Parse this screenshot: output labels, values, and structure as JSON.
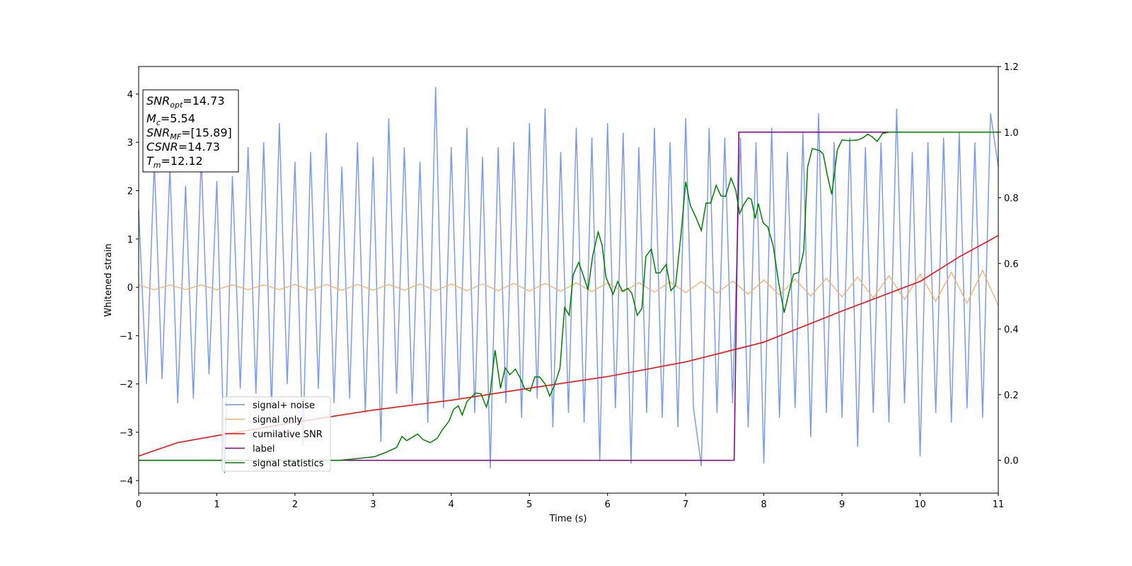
{
  "chart_data": {
    "type": "line",
    "xlabel": "Time (s)",
    "ylabel": "Whitened strain",
    "xlim": [
      0,
      11
    ],
    "ylim": [
      -4.26,
      4.57
    ],
    "y2lim": [
      -0.1,
      1.2
    ],
    "xticks": [
      0,
      1,
      2,
      3,
      4,
      5,
      6,
      7,
      8,
      9,
      10,
      11
    ],
    "yticks": [
      {
        "value": -4,
        "label": "−4"
      },
      {
        "value": -3,
        "label": "−3"
      },
      {
        "value": -2,
        "label": "−2"
      },
      {
        "value": -1,
        "label": "−1"
      },
      0,
      1,
      2,
      3,
      4
    ],
    "y2ticks": [
      {
        "value": 0,
        "label": "0.0"
      },
      0.2,
      0.4,
      0.6,
      0.8,
      {
        "value": 1,
        "label": "1.0"
      },
      1.2
    ],
    "legend": "lower left",
    "annotations": [
      {
        "text": "SNR",
        "sub": "opt",
        "value": "=14.73"
      },
      {
        "text": "M",
        "sub": "c",
        "value": "=5.54"
      },
      {
        "text": "SNR",
        "sub": "MF",
        "value": "=[15.89]"
      },
      {
        "text": "CSNR",
        "value": "=14.73"
      },
      {
        "text": "T",
        "sub": "m",
        "value": "=12.12"
      }
    ],
    "series": [
      {
        "name": "signal+ noise",
        "color": "#7090e8",
        "axis": "y",
        "x": [
          0,
          0.1,
          0.2,
          0.3,
          0.4,
          0.5,
          0.6,
          0.7,
          0.8,
          0.9,
          1,
          1.1,
          1.2,
          1.3,
          1.4,
          1.5,
          1.6,
          1.7,
          1.8,
          1.9,
          2,
          2.1,
          2.2,
          2.3,
          2.4,
          2.5,
          2.6,
          2.7,
          2.8,
          2.9,
          3,
          3.1,
          3.2,
          3.3,
          3.4,
          3.5,
          3.6,
          3.7,
          3.8,
          3.9,
          4,
          4.1,
          4.2,
          4.3,
          4.4,
          4.5,
          4.6,
          4.7,
          4.8,
          4.9,
          5,
          5.1,
          5.2,
          5.3,
          5.4,
          5.5,
          5.6,
          5.7,
          5.8,
          5.9,
          6,
          6.1,
          6.2,
          6.3,
          6.4,
          6.5,
          6.6,
          6.7,
          6.8,
          6.9,
          7,
          7.1,
          7.2,
          7.3,
          7.4,
          7.5,
          7.6,
          7.7,
          7.8,
          7.9,
          8,
          8.1,
          8.2,
          8.3,
          8.4,
          8.5,
          8.6,
          8.7,
          8.8,
          8.9,
          9,
          9.1,
          9.2,
          9.3,
          9.4,
          9.5,
          9.6,
          9.7,
          9.8,
          9.9,
          10,
          10.1,
          10.2,
          10.3,
          10.4,
          10.5,
          10.6,
          10.7,
          10.8,
          10.9,
          11
        ],
        "values": [
          1.6,
          -2.0,
          2.6,
          -1.9,
          2.5,
          -2.4,
          2.1,
          -2.3,
          2.7,
          -1.8,
          2.2,
          -3.85,
          2.3,
          -2.1,
          2.9,
          -2.2,
          3.0,
          -2.5,
          3.4,
          -2.0,
          2.6,
          -3.3,
          2.8,
          -2.1,
          3.2,
          -2.4,
          2.5,
          -2.3,
          3.0,
          -2.6,
          2.7,
          -3.2,
          3.5,
          -2.2,
          2.9,
          -2.4,
          2.6,
          -2.8,
          4.15,
          -2.5,
          2.9,
          -2.3,
          3.3,
          -2.6,
          2.7,
          -3.75,
          2.9,
          -2.4,
          3.0,
          -2.7,
          3.4,
          -2.3,
          3.7,
          -2.9,
          2.8,
          -2.6,
          3.3,
          -2.8,
          3.1,
          -3.6,
          3.4,
          -2.5,
          3.2,
          -3.65,
          2.9,
          -2.6,
          3.3,
          -2.7,
          3.0,
          -2.9,
          3.5,
          -2.5,
          -3.7,
          3.3,
          -2.6,
          3.1,
          -2.4,
          3.1,
          -2.9,
          3.0,
          -3.65,
          3.3,
          -2.7,
          2.8,
          -2.5,
          3.2,
          -3.1,
          3.6,
          -2.6,
          3.0,
          -2.7,
          3.1,
          -3.3,
          2.9,
          -2.6,
          3.0,
          -2.8,
          3.7,
          -2.4,
          2.8,
          -3.5,
          3.0,
          -2.6,
          3.1,
          -2.8,
          3.2,
          -2.5,
          3.0,
          -2.7,
          3.6,
          2.5
        ]
      },
      {
        "name": "signal only",
        "color": "#f2b06a",
        "axis": "y",
        "x": [
          0,
          0.2,
          0.4,
          0.6,
          0.8,
          1,
          1.2,
          1.4,
          1.6,
          1.8,
          2,
          2.2,
          2.4,
          2.6,
          2.8,
          3,
          3.2,
          3.4,
          3.6,
          3.8,
          4,
          4.2,
          4.4,
          4.6,
          4.8,
          5,
          5.2,
          5.4,
          5.6,
          5.8,
          6,
          6.2,
          6.4,
          6.6,
          6.8,
          7,
          7.2,
          7.4,
          7.6,
          7.8,
          8,
          8.2,
          8.4,
          8.6,
          8.8,
          9,
          9.2,
          9.4,
          9.6,
          9.8,
          10,
          10.2,
          10.4,
          10.6,
          10.8,
          11
        ],
        "values": [
          0.05,
          -0.05,
          0.05,
          -0.05,
          0.05,
          -0.05,
          0.05,
          -0.05,
          0.05,
          -0.05,
          0.06,
          -0.06,
          0.06,
          -0.06,
          0.06,
          -0.06,
          0.06,
          -0.06,
          0.07,
          -0.07,
          0.07,
          -0.07,
          0.07,
          -0.07,
          0.08,
          -0.08,
          0.08,
          -0.08,
          0.09,
          -0.09,
          0.09,
          -0.1,
          0.1,
          -0.1,
          0.11,
          -0.11,
          0.12,
          -0.12,
          0.13,
          -0.14,
          0.15,
          -0.16,
          0.17,
          -0.18,
          0.19,
          -0.2,
          0.21,
          -0.22,
          0.24,
          -0.25,
          0.27,
          -0.29,
          0.31,
          -0.33,
          0.35,
          -0.38
        ]
      },
      {
        "name": "cumilative SNR",
        "color": "#ff0000",
        "axis": "y2",
        "x": [
          0,
          0.5,
          1,
          2,
          3,
          4,
          5,
          6,
          7,
          8,
          9,
          10,
          10.5,
          11
        ],
        "values": [
          0.013,
          0.054,
          0.075,
          0.116,
          0.153,
          0.183,
          0.22,
          0.255,
          0.3,
          0.36,
          0.455,
          0.545,
          0.62,
          0.685
        ]
      },
      {
        "name": "label",
        "color": "#800080",
        "axis": "y2",
        "x": [
          0,
          7.62,
          7.68,
          11
        ],
        "values": [
          0,
          0,
          1,
          1
        ]
      },
      {
        "name": "signal statistics",
        "color": "#008000",
        "axis": "y2",
        "x": [
          0,
          2.57,
          2.75,
          3.02,
          3.16,
          3.3,
          3.37,
          3.43,
          3.57,
          3.64,
          3.73,
          3.82,
          3.88,
          3.97,
          4.03,
          4.09,
          4.14,
          4.2,
          4.31,
          4.38,
          4.45,
          4.5,
          4.56,
          4.63,
          4.69,
          4.75,
          4.82,
          4.88,
          4.94,
          5.01,
          5.07,
          5.13,
          5.2,
          5.26,
          5.32,
          5.39,
          5.45,
          5.51,
          5.56,
          5.63,
          5.69,
          5.75,
          5.81,
          5.88,
          5.93,
          5.98,
          6.07,
          6.13,
          6.19,
          6.26,
          6.31,
          6.38,
          6.44,
          6.49,
          6.56,
          6.62,
          6.67,
          6.75,
          6.81,
          6.87,
          6.94,
          7,
          7.06,
          7.13,
          7.2,
          7.26,
          7.32,
          7.39,
          7.45,
          7.51,
          7.58,
          7.64,
          7.69,
          7.74,
          7.8,
          7.84,
          7.89,
          7.93,
          7.99,
          8.05,
          8.12,
          8.19,
          8.26,
          8.32,
          8.38,
          8.45,
          8.51,
          8.56,
          8.62,
          8.71,
          8.76,
          8.81,
          8.87,
          8.94,
          9,
          9.09,
          9.2,
          9.27,
          9.33,
          9.39,
          9.45,
          9.52,
          9.6,
          10,
          11
        ],
        "values": [
          0,
          0,
          0.004,
          0.011,
          0.024,
          0.039,
          0.073,
          0.06,
          0.08,
          0.063,
          0.054,
          0.067,
          0.091,
          0.119,
          0.155,
          0.166,
          0.138,
          0.179,
          0.205,
          0.203,
          0.162,
          0.207,
          0.336,
          0.22,
          0.282,
          0.261,
          0.278,
          0.252,
          0.218,
          0.211,
          0.254,
          0.254,
          0.233,
          0.196,
          0.228,
          0.28,
          0.466,
          0.442,
          0.565,
          0.603,
          0.563,
          0.519,
          0.623,
          0.696,
          0.655,
          0.558,
          0.506,
          0.545,
          0.515,
          0.524,
          0.509,
          0.442,
          0.463,
          0.621,
          0.644,
          0.571,
          0.571,
          0.597,
          0.517,
          0.532,
          0.69,
          0.849,
          0.776,
          0.741,
          0.7,
          0.784,
          0.784,
          0.838,
          0.806,
          0.804,
          0.86,
          0.823,
          0.752,
          0.778,
          0.8,
          0.795,
          0.737,
          0.782,
          0.724,
          0.711,
          0.653,
          0.541,
          0.45,
          0.511,
          0.567,
          0.573,
          0.638,
          0.894,
          0.95,
          0.944,
          0.933,
          0.871,
          0.81,
          0.946,
          0.976,
          0.974,
          0.976,
          0.983,
          0.994,
          0.985,
          0.972,
          0.996,
          1,
          1,
          1
        ]
      }
    ]
  }
}
